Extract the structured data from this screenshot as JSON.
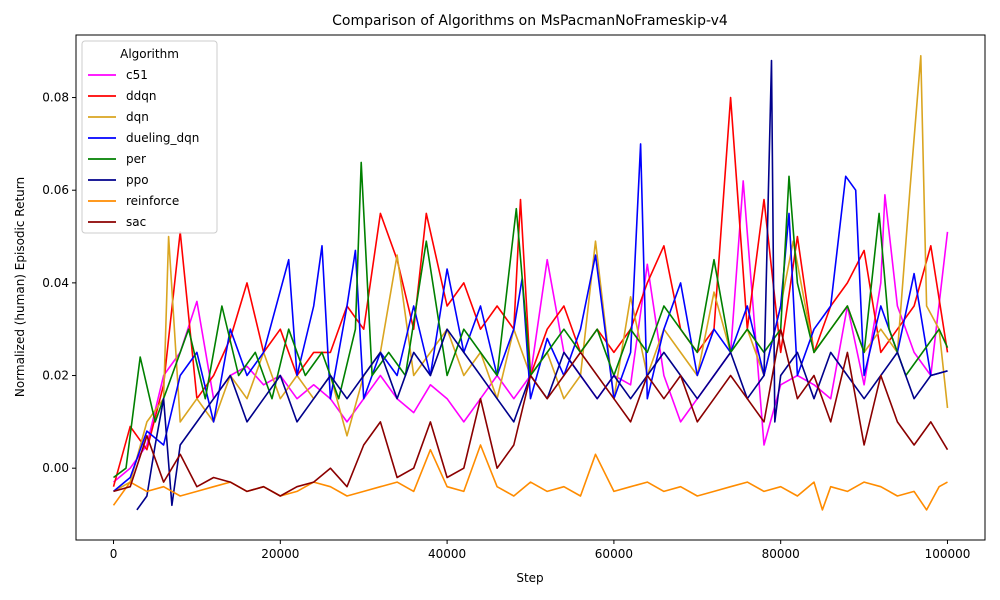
{
  "chart_data": {
    "type": "line",
    "title": "Comparison of Algorithms on MsPacmanNoFrameskip-v4",
    "xlabel": "Step",
    "ylabel": "Normalized (human) Episodic Return",
    "xlim": [
      -4500,
      104500
    ],
    "ylim": [
      -0.0155,
      0.0935
    ],
    "xticks": [
      0,
      20000,
      40000,
      60000,
      80000,
      100000
    ],
    "xtick_labels": [
      "0",
      "20000",
      "40000",
      "60000",
      "80000",
      "100000"
    ],
    "yticks": [
      0.0,
      0.02,
      0.04,
      0.06,
      0.08
    ],
    "ytick_labels": [
      "0.00",
      "0.02",
      "0.04",
      "0.06",
      "0.08"
    ],
    "grid": false,
    "legend": {
      "title": "Algorithm",
      "placement": "top-left"
    },
    "series": [
      {
        "name": "c51",
        "color": "#ff00ff",
        "x": [
          0,
          2000,
          4000,
          6000,
          8000,
          10000,
          12000,
          14000,
          16000,
          18000,
          20000,
          22000,
          24000,
          26000,
          28000,
          30000,
          32000,
          34000,
          36000,
          38000,
          40000,
          42000,
          44000,
          46000,
          48000,
          50000,
          52000,
          54000,
          56000,
          58000,
          60000,
          62000,
          64000,
          66000,
          68000,
          70000,
          72000,
          74000,
          75500,
          78000,
          80000,
          82000,
          84000,
          86000,
          88000,
          90000,
          92000,
          92500,
          94000,
          96000,
          98000,
          100000
        ],
        "y": [
          -0.003,
          0.0,
          0.005,
          0.02,
          0.025,
          0.036,
          0.015,
          0.02,
          0.022,
          0.018,
          0.02,
          0.015,
          0.018,
          0.015,
          0.01,
          0.015,
          0.02,
          0.015,
          0.012,
          0.018,
          0.015,
          0.01,
          0.015,
          0.02,
          0.015,
          0.02,
          0.045,
          0.025,
          0.02,
          0.015,
          0.02,
          0.018,
          0.044,
          0.02,
          0.01,
          0.015,
          0.02,
          0.025,
          0.062,
          0.005,
          0.018,
          0.02,
          0.018,
          0.015,
          0.035,
          0.018,
          0.04,
          0.059,
          0.035,
          0.025,
          0.02,
          0.051
        ]
      },
      {
        "name": "ddqn",
        "color": "#ff0000",
        "x": [
          0,
          2000,
          4000,
          6000,
          8000,
          10000,
          12000,
          14000,
          16000,
          18000,
          20000,
          22000,
          24000,
          26000,
          28000,
          30000,
          32000,
          34000,
          36000,
          37500,
          40000,
          42000,
          44000,
          46000,
          48000,
          48800,
          50000,
          52000,
          54000,
          56000,
          58000,
          60000,
          62000,
          64000,
          66000,
          68000,
          70000,
          72000,
          74000,
          76000,
          78000,
          80000,
          82000,
          84000,
          86000,
          88000,
          90000,
          92000,
          94000,
          96000,
          98000,
          100000
        ],
        "y": [
          -0.004,
          0.009,
          0.004,
          0.018,
          0.051,
          0.015,
          0.02,
          0.028,
          0.04,
          0.025,
          0.03,
          0.02,
          0.025,
          0.025,
          0.035,
          0.03,
          0.055,
          0.045,
          0.03,
          0.055,
          0.035,
          0.04,
          0.03,
          0.035,
          0.03,
          0.058,
          0.02,
          0.03,
          0.035,
          0.025,
          0.03,
          0.025,
          0.03,
          0.04,
          0.048,
          0.03,
          0.025,
          0.03,
          0.08,
          0.03,
          0.058,
          0.025,
          0.05,
          0.025,
          0.035,
          0.04,
          0.047,
          0.025,
          0.03,
          0.035,
          0.048,
          0.025
        ]
      },
      {
        "name": "dqn",
        "color": "#daa520",
        "x": [
          0,
          2000,
          4000,
          6000,
          6600,
          8000,
          10000,
          12000,
          14000,
          16000,
          18000,
          20000,
          22000,
          24000,
          26000,
          28000,
          30000,
          32000,
          34000,
          36000,
          38000,
          40000,
          42000,
          44000,
          46000,
          48000,
          50000,
          52000,
          54000,
          56000,
          57800,
          60000,
          62000,
          64000,
          66000,
          68000,
          70000,
          72000,
          74000,
          76000,
          78000,
          80000,
          81500,
          84000,
          86000,
          88000,
          90000,
          92000,
          94000,
          95500,
          96800,
          97500,
          99000,
          100000
        ],
        "y": [
          -0.005,
          -0.003,
          0.01,
          0.015,
          0.05,
          0.01,
          0.015,
          0.01,
          0.02,
          0.015,
          0.025,
          0.015,
          0.02,
          0.015,
          0.02,
          0.007,
          0.02,
          0.025,
          0.046,
          0.02,
          0.025,
          0.03,
          0.02,
          0.025,
          0.015,
          0.03,
          0.02,
          0.025,
          0.015,
          0.02,
          0.049,
          0.015,
          0.037,
          0.02,
          0.03,
          0.025,
          0.02,
          0.038,
          0.025,
          0.03,
          0.02,
          0.035,
          0.049,
          0.025,
          0.03,
          0.035,
          0.025,
          0.03,
          0.025,
          0.06,
          0.089,
          0.035,
          0.03,
          0.013
        ]
      },
      {
        "name": "dueling_dqn",
        "color": "#0000ff",
        "x": [
          0,
          2000,
          4000,
          6000,
          8000,
          10000,
          12000,
          14000,
          16000,
          18000,
          21000,
          22000,
          24000,
          25000,
          26000,
          28000,
          29000,
          30000,
          32000,
          34000,
          36000,
          38000,
          40000,
          42000,
          44000,
          46000,
          48000,
          49000,
          50000,
          52000,
          54000,
          56000,
          57800,
          60000,
          62000,
          63200,
          64000,
          66000,
          68000,
          70000,
          72000,
          74000,
          76000,
          78000,
          80000,
          81000,
          82000,
          84000,
          86000,
          87800,
          89000,
          90000,
          92000,
          94000,
          96000,
          98000,
          100000
        ],
        "y": [
          -0.005,
          -0.002,
          0.008,
          0.005,
          0.02,
          0.025,
          0.01,
          0.03,
          0.02,
          0.025,
          0.045,
          0.02,
          0.035,
          0.048,
          0.015,
          0.035,
          0.047,
          0.015,
          0.025,
          0.02,
          0.035,
          0.02,
          0.043,
          0.025,
          0.035,
          0.02,
          0.03,
          0.041,
          0.015,
          0.028,
          0.02,
          0.03,
          0.046,
          0.015,
          0.025,
          0.07,
          0.015,
          0.03,
          0.04,
          0.02,
          0.03,
          0.025,
          0.035,
          0.02,
          0.035,
          0.055,
          0.02,
          0.03,
          0.035,
          0.063,
          0.06,
          0.02,
          0.035,
          0.025,
          0.042,
          0.02,
          0.021
        ]
      },
      {
        "name": "per",
        "color": "#008000",
        "x": [
          0,
          1500,
          3200,
          5000,
          7000,
          9000,
          11000,
          13000,
          15000,
          17000,
          19000,
          21000,
          23000,
          25000,
          27000,
          29000,
          29700,
          31000,
          33000,
          35000,
          37500,
          40000,
          42000,
          44000,
          46000,
          48300,
          50000,
          52000,
          54000,
          56000,
          58000,
          60000,
          62000,
          64000,
          66000,
          68000,
          70000,
          72000,
          74000,
          76000,
          78000,
          80000,
          81000,
          82000,
          84000,
          86000,
          88000,
          90000,
          91800,
          93000,
          95000,
          97000,
          99000,
          100000
        ],
        "y": [
          -0.002,
          0.0,
          0.024,
          0.01,
          0.02,
          0.03,
          0.015,
          0.035,
          0.02,
          0.025,
          0.015,
          0.03,
          0.02,
          0.025,
          0.015,
          0.03,
          0.066,
          0.02,
          0.025,
          0.02,
          0.049,
          0.02,
          0.03,
          0.025,
          0.02,
          0.056,
          0.02,
          0.025,
          0.03,
          0.025,
          0.03,
          0.02,
          0.03,
          0.025,
          0.035,
          0.03,
          0.025,
          0.045,
          0.025,
          0.03,
          0.025,
          0.03,
          0.063,
          0.04,
          0.025,
          0.03,
          0.035,
          0.025,
          0.055,
          0.03,
          0.02,
          0.025,
          0.03,
          0.026
        ]
      },
      {
        "name": "ppo",
        "color": "#00008b",
        "x": [
          2800,
          4000,
          5000,
          6000,
          7000,
          8000,
          10000,
          12000,
          14000,
          16000,
          18000,
          20000,
          22000,
          24000,
          26000,
          28000,
          30000,
          32000,
          34000,
          36000,
          38000,
          40000,
          42000,
          44000,
          46000,
          48000,
          50000,
          52000,
          54000,
          56000,
          58000,
          60000,
          62000,
          64000,
          66000,
          68000,
          70000,
          72000,
          74000,
          76000,
          78000,
          78900,
          79300,
          80000,
          82000,
          84000,
          86000,
          88000,
          90000,
          92000,
          94000,
          96000,
          98000,
          100000
        ],
        "y": [
          -0.009,
          -0.006,
          0.005,
          0.015,
          -0.008,
          0.005,
          0.01,
          0.015,
          0.02,
          0.01,
          0.015,
          0.02,
          0.01,
          0.015,
          0.02,
          0.015,
          0.02,
          0.025,
          0.015,
          0.025,
          0.02,
          0.03,
          0.025,
          0.02,
          0.015,
          0.01,
          0.02,
          0.015,
          0.025,
          0.02,
          0.015,
          0.02,
          0.015,
          0.02,
          0.025,
          0.02,
          0.015,
          0.02,
          0.025,
          0.015,
          0.02,
          0.088,
          0.01,
          0.02,
          0.025,
          0.015,
          0.025,
          0.02,
          0.015,
          0.02,
          0.025,
          0.015,
          0.02,
          0.021
        ]
      },
      {
        "name": "reinforce",
        "color": "#ff8c00",
        "x": [
          0,
          2000,
          4000,
          6000,
          8000,
          10000,
          12000,
          14000,
          16000,
          18000,
          20000,
          22000,
          24000,
          26000,
          28000,
          30000,
          32000,
          34000,
          36000,
          38000,
          40000,
          42000,
          44000,
          46000,
          48000,
          50000,
          52000,
          54000,
          56000,
          57800,
          60000,
          62000,
          64000,
          66000,
          68000,
          70000,
          72000,
          74000,
          76000,
          78000,
          80000,
          82000,
          84000,
          85000,
          86000,
          88000,
          90000,
          92000,
          94000,
          96000,
          97500,
          99000,
          100000
        ],
        "y": [
          -0.008,
          -0.003,
          -0.005,
          -0.004,
          -0.006,
          -0.005,
          -0.004,
          -0.003,
          -0.005,
          -0.004,
          -0.006,
          -0.005,
          -0.003,
          -0.004,
          -0.006,
          -0.005,
          -0.004,
          -0.003,
          -0.005,
          0.004,
          -0.004,
          -0.005,
          0.005,
          -0.004,
          -0.006,
          -0.003,
          -0.005,
          -0.004,
          -0.006,
          0.003,
          -0.005,
          -0.004,
          -0.003,
          -0.005,
          -0.004,
          -0.006,
          -0.005,
          -0.004,
          -0.003,
          -0.005,
          -0.004,
          -0.006,
          -0.003,
          -0.009,
          -0.004,
          -0.005,
          -0.003,
          -0.004,
          -0.006,
          -0.005,
          -0.009,
          -0.004,
          -0.003
        ]
      },
      {
        "name": "sac",
        "color": "#8b0000",
        "x": [
          0,
          2000,
          4000,
          6000,
          8000,
          10000,
          12000,
          14000,
          16000,
          18000,
          20000,
          22000,
          24000,
          26000,
          28000,
          30000,
          32000,
          34000,
          36000,
          38000,
          40000,
          42000,
          44000,
          46000,
          48000,
          50000,
          52000,
          54000,
          56000,
          58000,
          60000,
          62000,
          64000,
          66000,
          68000,
          70000,
          72000,
          74000,
          76000,
          78000,
          80000,
          82000,
          84000,
          86000,
          88000,
          90000,
          92000,
          94000,
          96000,
          98000,
          100000
        ],
        "y": [
          -0.005,
          -0.004,
          0.007,
          -0.003,
          0.003,
          -0.004,
          -0.002,
          -0.003,
          -0.005,
          -0.004,
          -0.006,
          -0.004,
          -0.003,
          0.0,
          -0.004,
          0.005,
          0.01,
          -0.002,
          0.0,
          0.01,
          -0.002,
          0.0,
          0.015,
          0.0,
          0.005,
          0.02,
          0.015,
          0.02,
          0.025,
          0.02,
          0.015,
          0.01,
          0.02,
          0.015,
          0.02,
          0.01,
          0.015,
          0.02,
          0.015,
          0.01,
          0.03,
          0.015,
          0.02,
          0.01,
          0.025,
          0.005,
          0.02,
          0.01,
          0.005,
          0.01,
          0.004
        ]
      }
    ]
  }
}
